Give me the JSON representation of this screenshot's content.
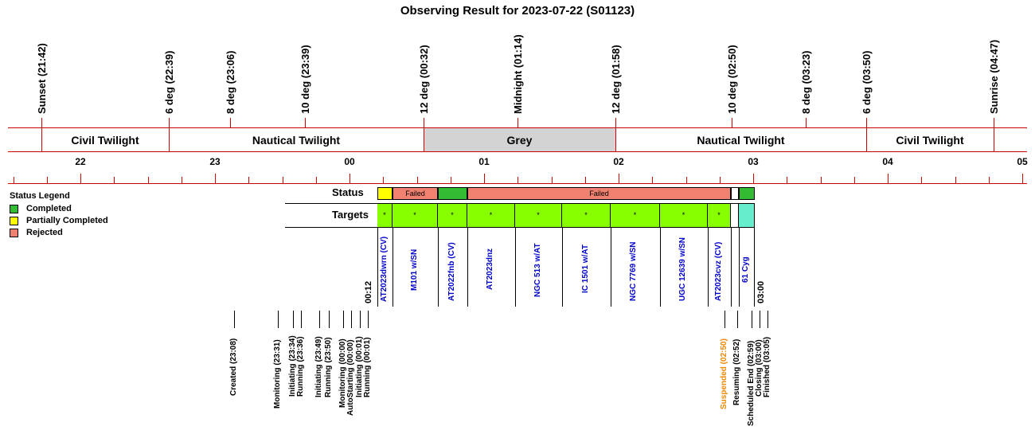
{
  "title": "Observing Result for 2023-07-22 (S01123)",
  "colors": {
    "completed": "#33bb33",
    "partial": "#ffff00",
    "rejected": "#f08070",
    "target_green": "#88ff00",
    "target_cyan": "#66eecc",
    "grey_band": "#d3d3d3",
    "line_red": "#cc0000",
    "target_text_blue": "#0000cc",
    "suspended_orange": "#ee8800"
  },
  "twilight_markers": [
    {
      "label": "Sunset (21:42)"
    },
    {
      "label": "6 deg (22:39)"
    },
    {
      "label": "8 deg (23:06)"
    },
    {
      "label": "10 deg (23:39)"
    },
    {
      "label": "12 deg (00:32)"
    },
    {
      "label": "Midnight (01:14)"
    },
    {
      "label": "12 deg (01:58)"
    },
    {
      "label": "10 deg (02:50)"
    },
    {
      "label": "8 deg (03:23)"
    },
    {
      "label": "6 deg (03:50)"
    },
    {
      "label": "Sunrise (04:47)"
    }
  ],
  "bands": [
    "Civil Twilight",
    "Nautical Twilight",
    "Grey",
    "Nautical Twilight",
    "Civil Twilight"
  ],
  "hours": [
    "22",
    "23",
    "00",
    "01",
    "02",
    "03",
    "04",
    "05"
  ],
  "legend": {
    "title": "Status Legend",
    "items": [
      "Completed",
      "Partially Completed",
      "Rejected"
    ]
  },
  "rows": {
    "status_label": "Status",
    "targets_label": "Targets"
  },
  "status_segments": [
    "",
    "Failed",
    "",
    "Failed",
    "",
    ""
  ],
  "target_marks": [
    "*",
    "*",
    "*",
    "*",
    "*",
    "*",
    "*",
    "*",
    "*",
    "",
    ""
  ],
  "targets": [
    "AT2023dwrn (CV)",
    "M101 w/SN",
    "AT2022fnb (CV)",
    "AT2023dnz",
    "NGC 513 w/AT",
    "IC 1501 w/AT",
    "NGC 7769 w/SN",
    "UGC 12639 w/SN",
    "AT2023cvz (CV)",
    "61 Cyg"
  ],
  "time_bounds": {
    "start": "00:12",
    "end": "03:00"
  },
  "events": [
    "Created (23:08)",
    "Monitoring (23:31)",
    "Initiating (23:34)",
    "Running (23:36)",
    "Initiating (23:49)",
    "Running (23:50)",
    "Monitoring (00:00)",
    "AutoStarting (00:00)",
    "Initiating (00:01)",
    "Running (00:01)",
    "Suspended (02:50)",
    "Resuming (02:52)",
    "Scheduled End (02:59)",
    "Closing (03:00)",
    "Finished (03:05)"
  ]
}
